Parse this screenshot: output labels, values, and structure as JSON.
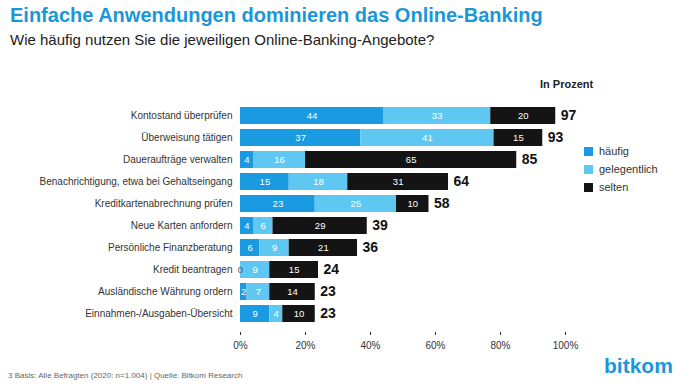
{
  "chart_data": {
    "type": "bar",
    "title": "Einfache Anwendungen dominieren das Online-Banking",
    "subtitle": "Wie häufig nutzen Sie die jeweiligen Online-Banking-Angebote?",
    "orientation": "horizontal",
    "stacked": true,
    "data_labels": true,
    "legend": "right",
    "grid": false,
    "categories": [
      "Kontostand überprüfen",
      "Überweisung tätigen",
      "Daueraufträge verwalten",
      "Benachrichtigung, etwa bei Gehaltseingang",
      "Kreditkartenabrechnung prüfen",
      "Neue Karten anfordern",
      "Persönliche Finanzberatung",
      "Kredit beantragen",
      "Ausländische Währung ordern",
      "Einnahmen-/Ausgaben-Übersicht"
    ],
    "series": [
      {
        "name": "häufig",
        "color": "#1a9ae0",
        "values": [
          44,
          37,
          4,
          15,
          23,
          4,
          6,
          0,
          2,
          9
        ]
      },
      {
        "name": "gelegentlich",
        "color": "#5ec8f2",
        "values": [
          33,
          41,
          16,
          18,
          25,
          6,
          9,
          9,
          7,
          4
        ]
      },
      {
        "name": "selten",
        "color": "#141414",
        "values": [
          20,
          15,
          65,
          31,
          10,
          29,
          21,
          15,
          14,
          10
        ]
      }
    ],
    "totals": [
      97,
      93,
      85,
      64,
      58,
      39,
      36,
      24,
      23,
      23
    ],
    "xlim": [
      0,
      100
    ],
    "xticks": [
      {
        "value": 0,
        "label": "0%"
      },
      {
        "value": 20,
        "label": "20%"
      },
      {
        "value": 40,
        "label": "40%"
      },
      {
        "value": 60,
        "label": "60%"
      },
      {
        "value": 80,
        "label": "80%"
      },
      {
        "value": 100,
        "label": "100%"
      }
    ],
    "annotations": [
      "In Prozent"
    ],
    "footnote": "3  Basis: Alle Befragten (2020: n=1.004) | Quelle: Bitkom Research",
    "logo": "bitkom"
  }
}
